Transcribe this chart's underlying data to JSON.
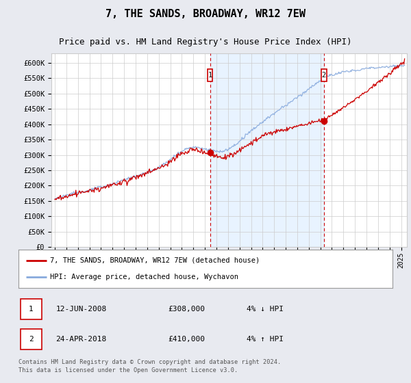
{
  "title": "7, THE SANDS, BROADWAY, WR12 7EW",
  "subtitle": "Price paid vs. HM Land Registry's House Price Index (HPI)",
  "ylabel_ticks": [
    0,
    50000,
    100000,
    150000,
    200000,
    250000,
    300000,
    350000,
    400000,
    450000,
    500000,
    550000,
    600000
  ],
  "ylabel_labels": [
    "£0",
    "£50K",
    "£100K",
    "£150K",
    "£200K",
    "£250K",
    "£300K",
    "£350K",
    "£400K",
    "£450K",
    "£500K",
    "£550K",
    "£600K"
  ],
  "ylim": [
    0,
    630000
  ],
  "xlim_start": 1994.7,
  "xlim_end": 2025.5,
  "background_color": "#e8eaf0",
  "plot_bg_color": "#ffffff",
  "grid_color": "#cccccc",
  "transaction1_date": "12-JUN-2008",
  "transaction1_price": 308000,
  "transaction1_label": "£308,000",
  "transaction1_hpi": "4% ↓ HPI",
  "transaction1_x": 2008.44,
  "transaction2_date": "24-APR-2018",
  "transaction2_price": 410000,
  "transaction2_label": "£410,000",
  "transaction2_hpi": "4% ↑ HPI",
  "transaction2_x": 2018.31,
  "legend_line1": "7, THE SANDS, BROADWAY, WR12 7EW (detached house)",
  "legend_line2": "HPI: Average price, detached house, Wychavon",
  "footer": "Contains HM Land Registry data © Crown copyright and database right 2024.\nThis data is licensed under the Open Government Licence v3.0.",
  "red_line_color": "#cc0000",
  "blue_line_color": "#88aadd",
  "shade_color": "#ddeeff",
  "marker_box_color": "#cc0000",
  "title_fontsize": 11,
  "subtitle_fontsize": 9,
  "tick_fontsize": 7.5
}
